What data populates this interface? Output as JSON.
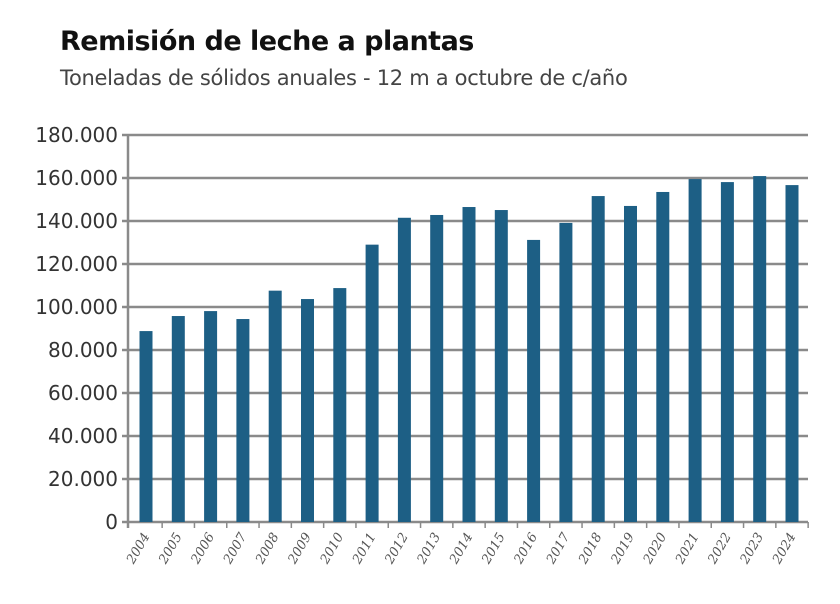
{
  "chart_data": {
    "type": "bar",
    "title": "Remisión de leche a plantas",
    "subtitle": "Toneladas de sólidos anuales - 12 m a octubre  de c/año",
    "xlabel": "",
    "ylabel": "",
    "ylim": [
      0,
      180000
    ],
    "yticks": [
      0,
      20000,
      40000,
      60000,
      80000,
      100000,
      120000,
      140000,
      160000,
      180000
    ],
    "ytick_labels": [
      "0",
      "20.000",
      "40.000",
      "60.000",
      "80.000",
      "100.000",
      "120.000",
      "140.000",
      "160.000",
      "180.000"
    ],
    "grid": true,
    "categories": [
      "2004",
      "2005",
      "2006",
      "2007",
      "2008",
      "2009",
      "2010",
      "2011",
      "2012",
      "2013",
      "2014",
      "2015",
      "2016",
      "2017",
      "2018",
      "2019",
      "2020",
      "2021",
      "2022",
      "2023",
      "2024"
    ],
    "values": [
      88800,
      95800,
      98100,
      94400,
      107600,
      103700,
      108800,
      129000,
      141500,
      142800,
      146500,
      145100,
      131200,
      139100,
      151600,
      147000,
      153500,
      159500,
      158100,
      160900,
      156700
    ],
    "bar_color": "#1d5f85",
    "grid_color": "#8a8a8a"
  }
}
